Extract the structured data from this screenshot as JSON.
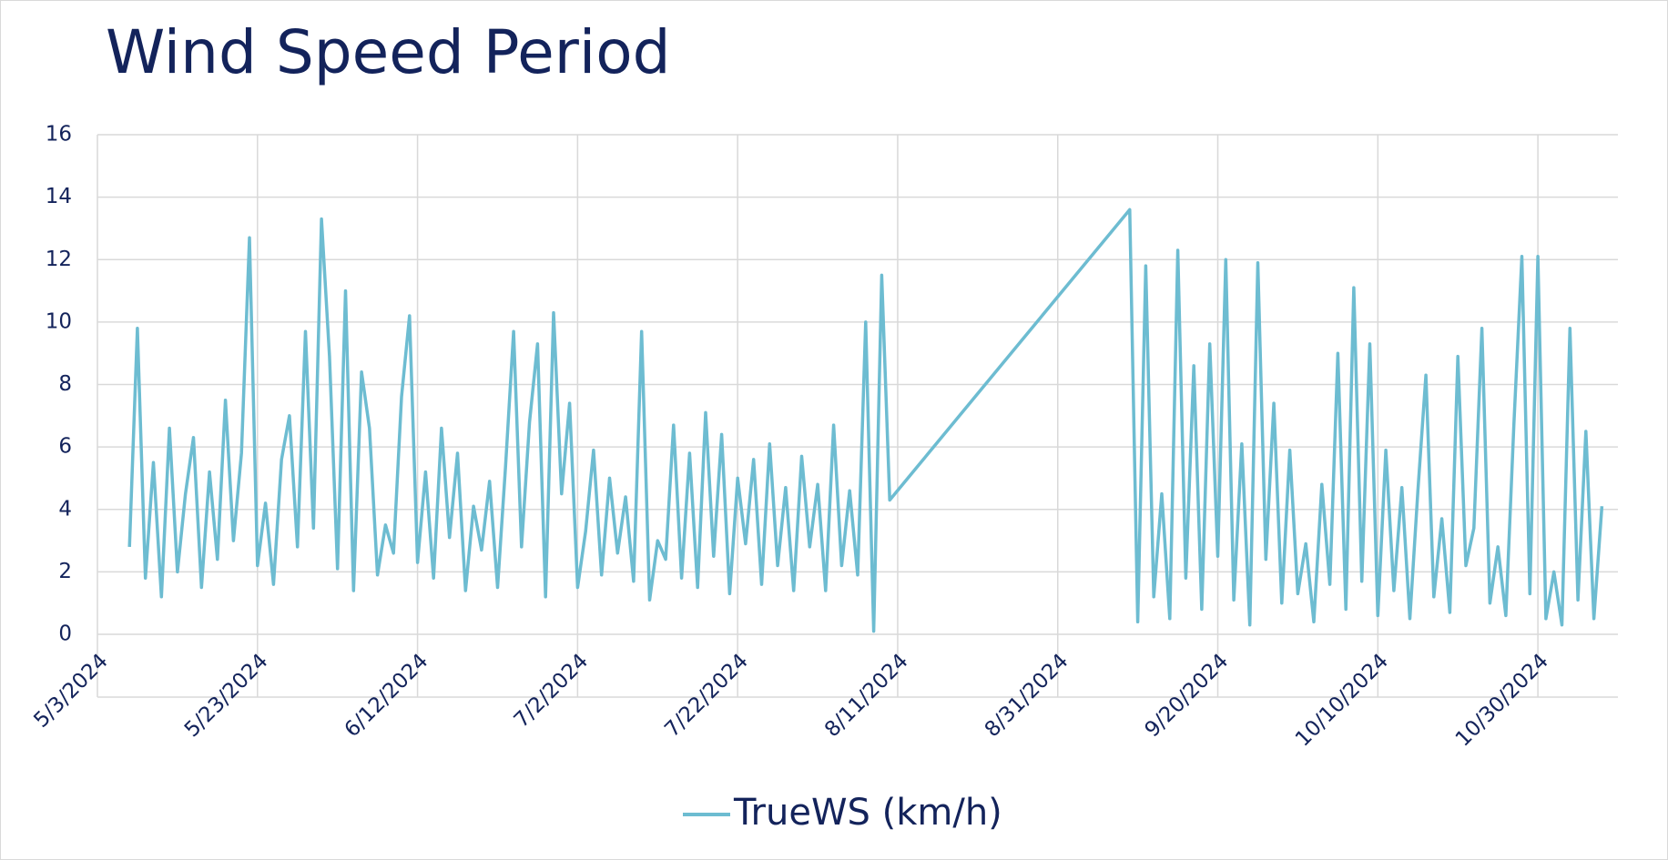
{
  "chart_data": {
    "type": "line",
    "title": "Wind Speed Period",
    "x": [
      "5/7/2024",
      "5/8/2024",
      "5/9/2024",
      "5/10/2024",
      "5/11/2024",
      "5/12/2024",
      "5/13/2024",
      "5/14/2024",
      "5/15/2024",
      "5/16/2024",
      "5/17/2024",
      "5/18/2024",
      "5/19/2024",
      "5/20/2024",
      "5/21/2024",
      "5/22/2024",
      "5/23/2024",
      "5/24/2024",
      "5/25/2024",
      "5/26/2024",
      "5/27/2024",
      "5/28/2024",
      "5/29/2024",
      "5/30/2024",
      "5/31/2024",
      "6/1/2024",
      "6/2/2024",
      "6/3/2024",
      "6/4/2024",
      "6/5/2024",
      "6/6/2024",
      "6/7/2024",
      "6/8/2024",
      "6/9/2024",
      "6/10/2024",
      "6/11/2024",
      "6/12/2024",
      "6/13/2024",
      "6/14/2024",
      "6/15/2024",
      "6/16/2024",
      "6/17/2024",
      "6/18/2024",
      "6/19/2024",
      "6/20/2024",
      "6/21/2024",
      "6/22/2024",
      "6/23/2024",
      "6/24/2024",
      "6/25/2024",
      "6/26/2024",
      "6/27/2024",
      "6/28/2024",
      "6/29/2024",
      "6/30/2024",
      "7/1/2024",
      "7/2/2024",
      "7/3/2024",
      "7/4/2024",
      "7/5/2024",
      "7/6/2024",
      "7/7/2024",
      "7/8/2024",
      "7/9/2024",
      "7/10/2024",
      "7/11/2024",
      "7/12/2024",
      "7/13/2024",
      "7/14/2024",
      "7/15/2024",
      "7/16/2024",
      "7/17/2024",
      "7/18/2024",
      "7/19/2024",
      "7/20/2024",
      "7/21/2024",
      "7/22/2024",
      "7/23/2024",
      "7/24/2024",
      "7/25/2024",
      "7/26/2024",
      "7/27/2024",
      "7/28/2024",
      "7/29/2024",
      "7/30/2024",
      "7/31/2024",
      "8/1/2024",
      "8/2/2024",
      "8/3/2024",
      "8/4/2024",
      "8/5/2024",
      "8/6/2024",
      "8/7/2024",
      "8/8/2024",
      "8/9/2024",
      "8/10/2024",
      "9/9/2024",
      "9/10/2024",
      "9/11/2024",
      "9/12/2024",
      "9/13/2024",
      "9/14/2024",
      "9/15/2024",
      "9/16/2024",
      "9/17/2024",
      "9/18/2024",
      "9/19/2024",
      "9/20/2024",
      "9/21/2024",
      "9/22/2024",
      "9/23/2024",
      "9/24/2024",
      "9/25/2024",
      "9/26/2024",
      "9/27/2024",
      "9/28/2024",
      "9/29/2024",
      "9/30/2024",
      "10/1/2024",
      "10/2/2024",
      "10/3/2024",
      "10/4/2024",
      "10/5/2024",
      "10/6/2024",
      "10/7/2024",
      "10/8/2024",
      "10/9/2024",
      "10/10/2024",
      "10/11/2024",
      "10/12/2024",
      "10/13/2024",
      "10/14/2024",
      "10/15/2024",
      "10/16/2024",
      "10/17/2024",
      "10/18/2024",
      "10/19/2024",
      "10/20/2024",
      "10/21/2024",
      "10/22/2024",
      "10/23/2024",
      "10/24/2024",
      "10/25/2024",
      "10/26/2024",
      "10/27/2024",
      "10/28/2024",
      "10/29/2024",
      "10/30/2024",
      "10/31/2024",
      "11/1/2024",
      "11/2/2024",
      "11/3/2024",
      "11/4/2024",
      "11/5/2024",
      "11/6/2024",
      "11/7/2024"
    ],
    "series": [
      {
        "name": "TrueWS (km/h)",
        "color": "#6dbcd1",
        "values": [
          2.8,
          9.8,
          1.8,
          5.5,
          1.2,
          6.6,
          2.0,
          4.5,
          6.3,
          1.5,
          5.2,
          2.4,
          7.5,
          3.0,
          5.8,
          12.7,
          2.2,
          4.2,
          1.6,
          5.6,
          7.0,
          2.8,
          9.7,
          3.4,
          13.3,
          8.9,
          2.1,
          11.0,
          1.4,
          8.4,
          6.6,
          1.9,
          3.5,
          2.6,
          7.6,
          10.2,
          2.3,
          5.2,
          1.8,
          6.6,
          3.1,
          5.8,
          1.4,
          4.1,
          2.7,
          4.9,
          1.5,
          5.4,
          9.7,
          2.8,
          6.8,
          9.3,
          1.2,
          10.3,
          4.5,
          7.4,
          1.5,
          3.3,
          5.9,
          1.9,
          5.0,
          2.6,
          4.4,
          1.7,
          9.7,
          1.1,
          3.0,
          2.4,
          6.7,
          1.8,
          5.8,
          1.5,
          7.1,
          2.5,
          6.4,
          1.3,
          5.0,
          2.9,
          5.6,
          1.6,
          6.1,
          2.2,
          4.7,
          1.4,
          5.7,
          2.8,
          4.8,
          1.4,
          6.7,
          2.2,
          4.6,
          1.9,
          10.0,
          0.1,
          11.5,
          4.3,
          13.6,
          0.4,
          11.8,
          1.2,
          4.5,
          0.5,
          12.3,
          1.8,
          8.6,
          0.8,
          9.3,
          2.5,
          12.0,
          1.1,
          6.1,
          0.3,
          11.9,
          2.4,
          7.4,
          1.0,
          5.9,
          1.3,
          2.9,
          0.4,
          4.8,
          1.6,
          9.0,
          0.8,
          11.1,
          1.7,
          9.3,
          0.6,
          5.9,
          1.4,
          4.7,
          0.5,
          4.6,
          8.3,
          1.2,
          3.7,
          0.7,
          8.9,
          2.2,
          3.4,
          9.8,
          1.0,
          2.8,
          0.6,
          6.7,
          12.1,
          1.3,
          12.1,
          0.5,
          2.0,
          0.3,
          9.8,
          1.1,
          6.5,
          0.5,
          4.1
        ]
      }
    ],
    "xlim": [
      "5/3/2024",
      "11/9/2024"
    ],
    "xticks": [
      "5/3/2024",
      "5/23/2024",
      "6/12/2024",
      "7/2/2024",
      "7/22/2024",
      "8/11/2024",
      "8/31/2024",
      "9/20/2024",
      "10/10/2024",
      "10/30/2024"
    ],
    "ylim": [
      0,
      16
    ],
    "yticks": [
      0,
      2,
      4,
      6,
      8,
      10,
      12,
      14,
      16
    ],
    "grid": true,
    "legend": "bottom"
  }
}
